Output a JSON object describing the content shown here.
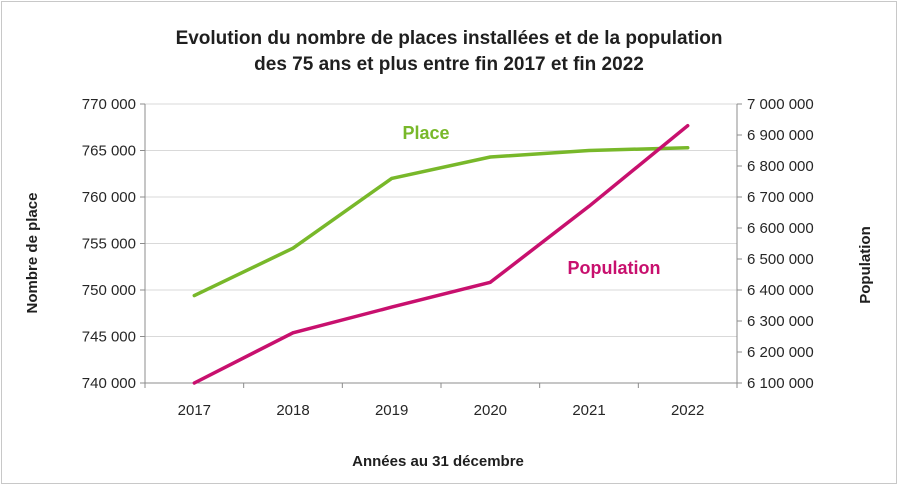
{
  "chart_data": {
    "type": "line",
    "title_line1": "Evolution du nombre de places installées et de la population",
    "title_line2": "des 75 ans et plus entre fin 2017 et  fin 2022",
    "xlabel": "Années au 31 décembre",
    "ylabel_left": "Nombre de place",
    "ylabel_right": "Population",
    "categories": [
      "2017",
      "2018",
      "2019",
      "2020",
      "2021",
      "2022"
    ],
    "left_axis": {
      "min": 740000,
      "max": 770000,
      "step": 5000,
      "ticks": [
        "740 000",
        "745 000",
        "750 000",
        "755 000",
        "760 000",
        "765 000",
        "770 000"
      ]
    },
    "right_axis": {
      "min": 6100000,
      "max": 7000000,
      "step": 100000,
      "ticks": [
        "6 100 000",
        "6 200 000",
        "6 300 000",
        "6 400 000",
        "6 500 000",
        "6 600 000",
        "6 700 000",
        "6 800 000",
        "6 900 000",
        "7 000 000"
      ]
    },
    "series": [
      {
        "name": "Place",
        "axis": "left",
        "color": "#78b82a",
        "values": [
          749400,
          754500,
          762000,
          764300,
          765000,
          765300
        ]
      },
      {
        "name": "Population",
        "axis": "right",
        "color": "#c8106e",
        "values": [
          6100000,
          6262000,
          6345000,
          6425000,
          6670000,
          6930000
        ]
      }
    ],
    "grid": true,
    "legend": "inline labels"
  }
}
